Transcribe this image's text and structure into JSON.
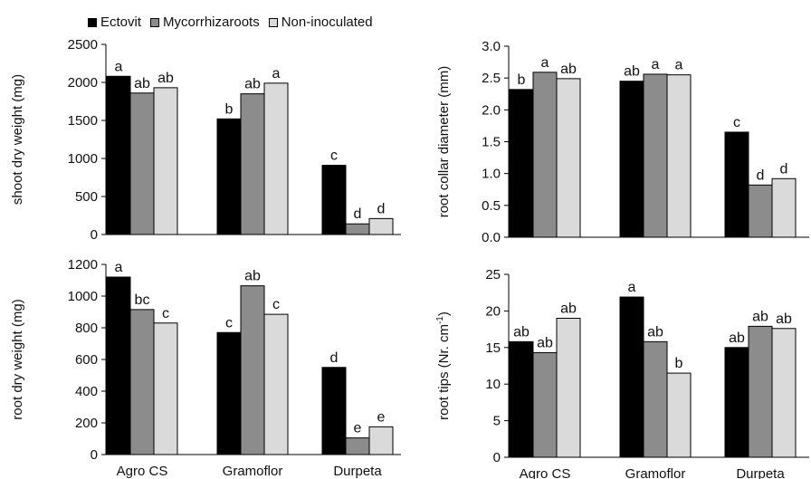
{
  "legend": [
    {
      "name": "Ectovit",
      "color": "#000000"
    },
    {
      "name": "Mycorrhizaroots",
      "color": "#8c8c8c"
    },
    {
      "name": "Non-inoculated",
      "color": "#dadada"
    }
  ],
  "chart_data": [
    {
      "type": "bar",
      "ylabel": "shoot dry weight (mg)",
      "ylim": [
        0,
        2500
      ],
      "yticks": [
        "0",
        "500",
        "1000",
        "1500",
        "2000",
        "2500"
      ],
      "categories": [
        "Agro CS",
        "Gramoflor",
        "Durpeta"
      ],
      "show_category_labels": false,
      "series": [
        {
          "name": "Ectovit",
          "values": [
            2080,
            1520,
            910
          ],
          "labels": [
            "a",
            "b",
            "c"
          ]
        },
        {
          "name": "Mycorrhizaroots",
          "values": [
            1860,
            1850,
            140
          ],
          "labels": [
            "ab",
            "ab",
            "d"
          ]
        },
        {
          "name": "Non-inoculated",
          "values": [
            1930,
            1990,
            210
          ],
          "labels": [
            "ab",
            "a",
            "d"
          ]
        }
      ],
      "legend_position": "top-left"
    },
    {
      "type": "bar",
      "ylabel": "root collar diameter (mm)",
      "ylim": [
        0,
        3.0
      ],
      "yticks": [
        "0.0",
        "0.5",
        "1.0",
        "1.5",
        "2.0",
        "2.5",
        "3.0"
      ],
      "categories": [
        "Agro CS",
        "Gramoflor",
        "Durpeta"
      ],
      "show_category_labels": false,
      "series": [
        {
          "name": "Ectovit",
          "values": [
            2.32,
            2.45,
            1.65
          ],
          "labels": [
            "b",
            "ab",
            "c"
          ]
        },
        {
          "name": "Mycorrhizaroots",
          "values": [
            2.59,
            2.56,
            0.82
          ],
          "labels": [
            "a",
            "a",
            "d"
          ]
        },
        {
          "name": "Non-inoculated",
          "values": [
            2.49,
            2.55,
            0.92
          ],
          "labels": [
            "ab",
            "a",
            "d"
          ]
        }
      ]
    },
    {
      "type": "bar",
      "ylabel": "root dry weight (mg)",
      "ylim": [
        0,
        1200
      ],
      "yticks": [
        "0",
        "200",
        "400",
        "600",
        "800",
        "1000",
        "1200"
      ],
      "categories": [
        "Agro CS",
        "Gramoflor",
        "Durpeta"
      ],
      "show_category_labels": true,
      "series": [
        {
          "name": "Ectovit",
          "values": [
            1120,
            770,
            550
          ],
          "labels": [
            "a",
            "c",
            "d"
          ]
        },
        {
          "name": "Mycorrhizaroots",
          "values": [
            915,
            1065,
            105
          ],
          "labels": [
            "bc",
            "ab",
            "e"
          ]
        },
        {
          "name": "Non-inoculated",
          "values": [
            830,
            885,
            175
          ],
          "labels": [
            "c",
            "c",
            "e"
          ]
        }
      ]
    },
    {
      "type": "bar",
      "ylabel": "root tips (Nr. cm",
      "ylabel_sup": "-1",
      "ylabel_tail": ")",
      "ylim": [
        0,
        25
      ],
      "yticks": [
        "0",
        "5",
        "10",
        "15",
        "20",
        "25"
      ],
      "categories": [
        "Agro CS",
        "Gramoflor",
        "Durpeta"
      ],
      "show_category_labels": true,
      "series": [
        {
          "name": "Ectovit",
          "values": [
            15.8,
            21.9,
            15.0
          ],
          "labels": [
            "ab",
            "a",
            "ab"
          ]
        },
        {
          "name": "Mycorrhizaroots",
          "values": [
            14.3,
            15.8,
            17.9
          ],
          "labels": [
            "ab",
            "ab",
            "ab"
          ]
        },
        {
          "name": "Non-inoculated",
          "values": [
            19.0,
            11.5,
            17.6
          ],
          "labels": [
            "ab",
            "b",
            "ab"
          ]
        }
      ]
    }
  ]
}
